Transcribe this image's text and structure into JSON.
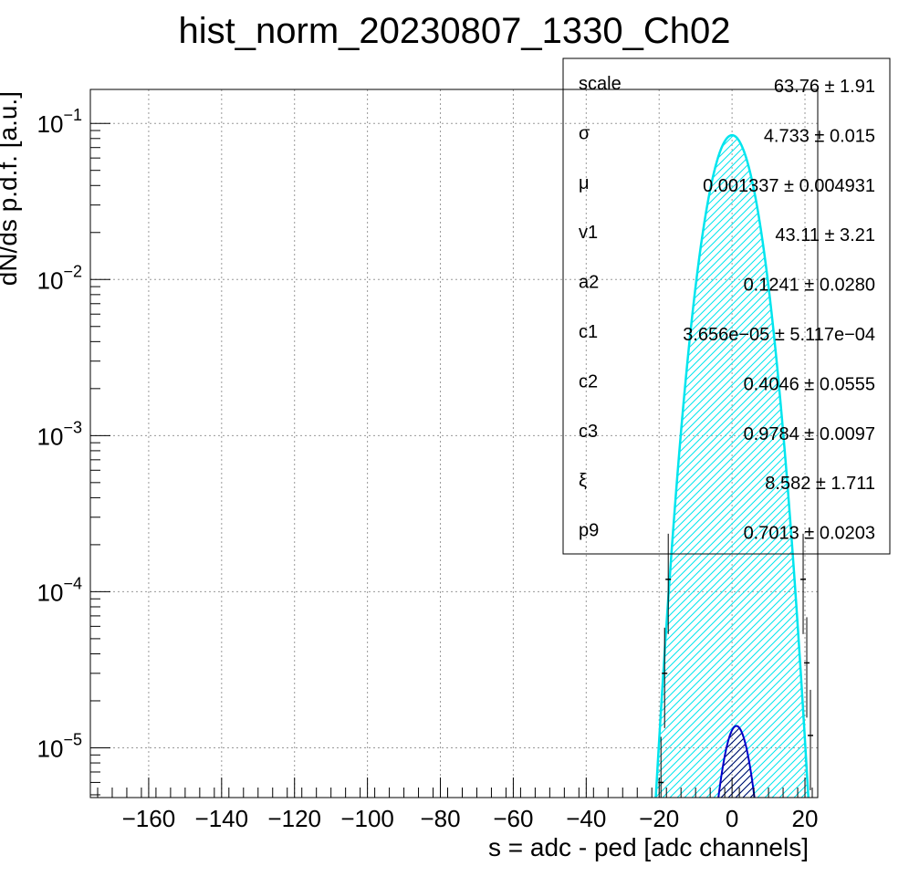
{
  "chart_data": {
    "type": "line",
    "title": "hist_norm_20230807_1330_Ch02",
    "xlabel": "s = adc - ped [adc channels]",
    "ylabel": "dN/ds p.d.f. [a.u.]",
    "xlim": [
      -176,
      23.5
    ],
    "ylim": [
      4.8e-06,
      0.165
    ],
    "yscale": "log",
    "grid": true,
    "x_ticks": [
      {
        "value": -160,
        "label": "−160"
      },
      {
        "value": -140,
        "label": "−140"
      },
      {
        "value": -120,
        "label": "−120"
      },
      {
        "value": -100,
        "label": "−100"
      },
      {
        "value": -80,
        "label": "−80"
      },
      {
        "value": -60,
        "label": "−60"
      },
      {
        "value": -40,
        "label": "−40"
      },
      {
        "value": -20,
        "label": "−20"
      },
      {
        "value": 0,
        "label": "0"
      },
      {
        "value": 20,
        "label": "20"
      }
    ],
    "y_ticks": [
      {
        "value": 0.1,
        "mantissa": "10",
        "exp": "−1"
      },
      {
        "value": 0.01,
        "mantissa": "10",
        "exp": "−2"
      },
      {
        "value": 0.001,
        "mantissa": "10",
        "exp": "−3"
      },
      {
        "value": 0.0001,
        "mantissa": "10",
        "exp": "−4"
      },
      {
        "value": 1e-05,
        "mantissa": "10",
        "exp": "−5"
      }
    ],
    "series": [
      {
        "style": "filled-hatched",
        "color": "#00e5ee",
        "sigma": 4.733,
        "mu": 0.001337,
        "peak": 0.084
      },
      {
        "style": "filled-hatched",
        "color": "#0000cc",
        "sigma": 3.4,
        "mu": 1.2,
        "peak": 1.38e-05
      }
    ],
    "histogram_edge_points": [
      {
        "x": -19.5,
        "y": 6e-06
      },
      {
        "x": -18.5,
        "y": 3e-05
      },
      {
        "x": -17.5,
        "y": 0.00012
      },
      {
        "x": 19.5,
        "y": 0.00012
      },
      {
        "x": 20.5,
        "y": 3.5e-05
      },
      {
        "x": 21.5,
        "y": 1.2e-05
      }
    ]
  },
  "stats_box": {
    "rows": [
      {
        "key": "scale",
        "value": "63.76 ± 1.91"
      },
      {
        "key": "σ",
        "value": "4.733 ± 0.015"
      },
      {
        "key": "μ",
        "value": "0.001337 ± 0.004931"
      },
      {
        "key": "v1",
        "value": "43.11 ± 3.21"
      },
      {
        "key": "a2",
        "value": "0.1241 ± 0.0280"
      },
      {
        "key": "c1",
        "value": "3.656e−05 ± 5.117e−04"
      },
      {
        "key": "c2",
        "value": "0.4046 ± 0.0555"
      },
      {
        "key": "c3",
        "value": "0.9784 ± 0.0097"
      },
      {
        "key": "ξ",
        "value": "8.582 ± 1.711"
      },
      {
        "key": "p9",
        "value": "0.7013 ± 0.0203"
      }
    ]
  }
}
